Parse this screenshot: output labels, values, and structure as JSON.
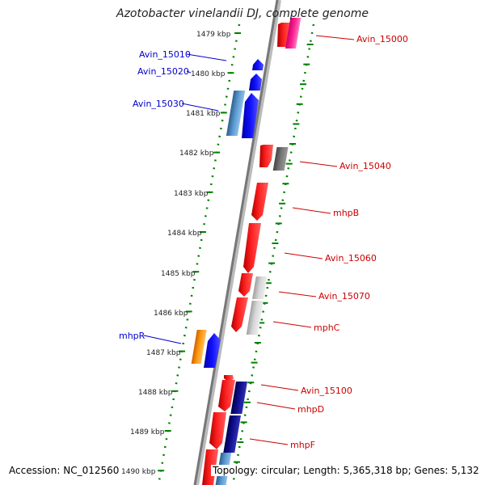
{
  "title": "Azotobacter vinelandii DJ, complete genome",
  "footer": {
    "accession": "Accession: NC_012560",
    "summary": "Topology: circular; Length: 5,365,318 bp; Genes: 5,132"
  },
  "colors": {
    "red": "#ff0000",
    "blue": "#0000ff",
    "steel_blue": "#4682b4",
    "gray": "#666666",
    "light_gray": "#c0c0c0",
    "orange": "#ff8c00",
    "magenta": "#ff1493",
    "navy": "#000080",
    "tick_green": "#008000",
    "label_blue": "#0000cc",
    "label_red": "#cc0000"
  },
  "ticks": [
    "1479 kbp",
    "1480 kbp",
    "1481 kbp",
    "1482 kbp",
    "1483 kbp",
    "1484 kbp",
    "1485 kbp",
    "1486 kbp",
    "1487 kbp",
    "1488 kbp",
    "1489 kbp",
    "1490 kbp"
  ],
  "gene_labels_left": [
    "Avin_15010",
    "Avin_15020",
    "Avin_15030",
    "mhpR"
  ],
  "gene_labels_right": [
    "Avin_15000",
    "Avin_15040",
    "mhpB",
    "Avin_15060",
    "Avin_15070",
    "mphC",
    "Avin_15100",
    "mhpD",
    "mhpF"
  ]
}
